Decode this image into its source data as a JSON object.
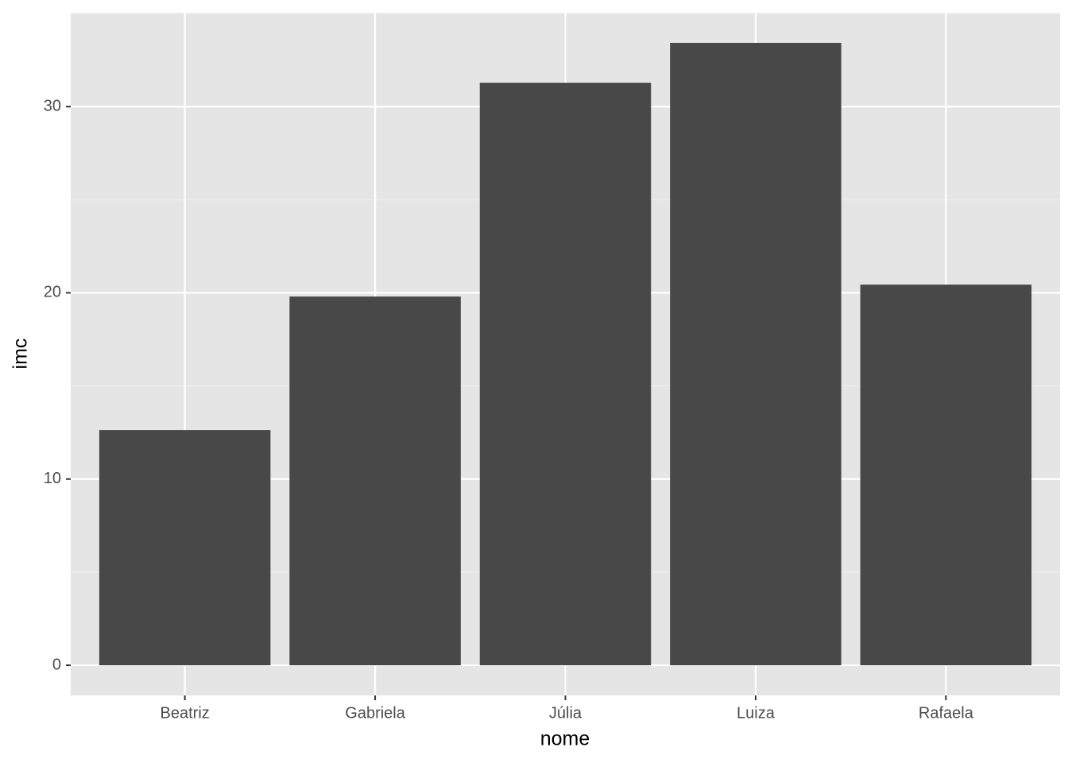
{
  "chart_data": {
    "type": "bar",
    "x_label": "nome",
    "y_label": "imc",
    "categories": [
      "Beatriz",
      "Gabriela",
      "Júlia",
      "Luiza",
      "Rafaela"
    ],
    "values": [
      12.63,
      19.8,
      31.28,
      33.42,
      20.44
    ],
    "color": "#484848",
    "ylim": [
      -1.62,
      35.04
    ],
    "yticks": [
      0,
      10,
      20,
      30
    ],
    "grid": true
  }
}
